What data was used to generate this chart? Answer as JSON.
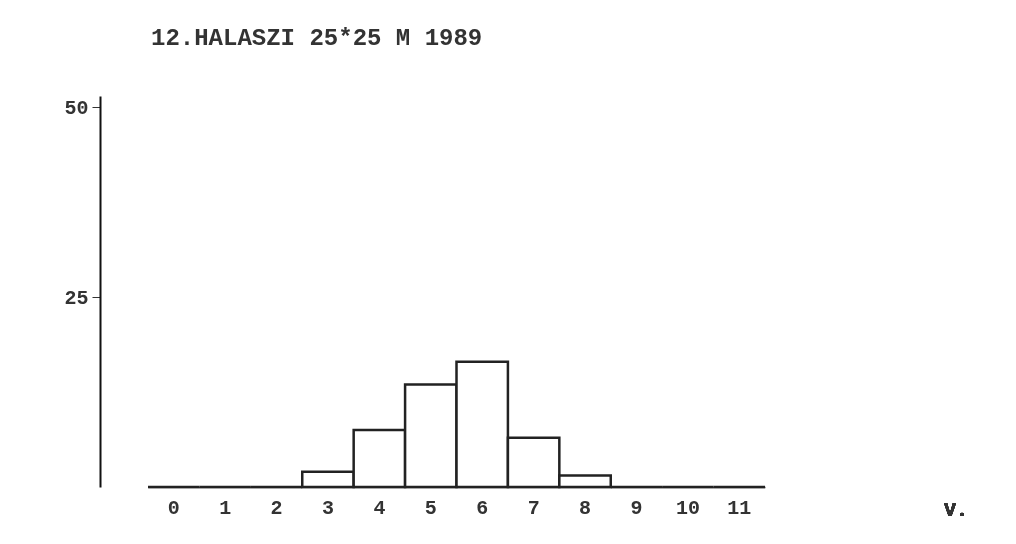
{
  "chart_data": {
    "type": "bar",
    "title": "12.HALASZI 25*25 M 1989",
    "annotations": [
      "V."
    ],
    "categories": [
      "0",
      "1",
      "2",
      "3",
      "4",
      "5",
      "6",
      "7",
      "8",
      "9",
      "10",
      "11"
    ],
    "values": [
      0,
      0,
      0,
      2,
      7.5,
      13.5,
      16.5,
      6.5,
      1.5,
      0,
      0,
      0
    ],
    "ylim": [
      0,
      51.5
    ],
    "yticks": [
      25,
      50
    ],
    "grid": false
  }
}
